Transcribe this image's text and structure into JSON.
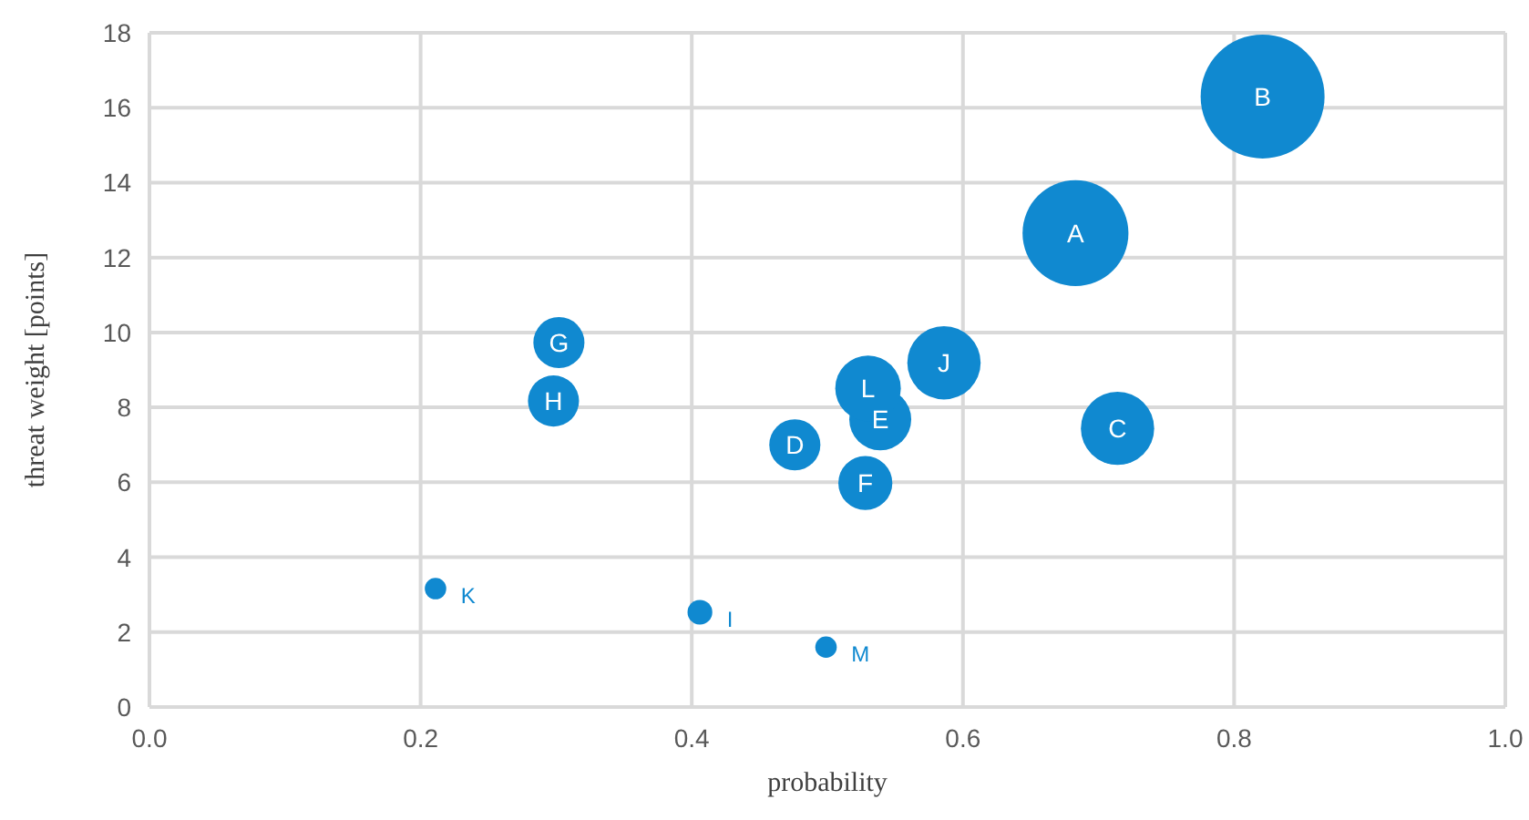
{
  "chart_data": {
    "type": "bubble",
    "xlabel": "probability",
    "ylabel": "threat weight [points]",
    "x": [
      0.683,
      0.821,
      0.714,
      0.476,
      0.539,
      0.528,
      0.302,
      0.298,
      0.406,
      0.586,
      0.211,
      0.53,
      0.499
    ],
    "values": [
      12.65,
      16.3,
      7.44,
      7.0,
      7.68,
      5.98,
      9.73,
      8.17,
      2.53,
      9.19,
      3.16,
      8.51,
      1.6
    ],
    "sizes": [
      0.73,
      1,
      0.35,
      0.17,
      0.25,
      0.19,
      0.17,
      0.17,
      0.04,
      0.35,
      0.03,
      0.28,
      0.03
    ],
    "color": "#1089d0",
    "annotations": [
      {
        "text": "A",
        "x": 0.683,
        "y": 12.65
      },
      {
        "text": "B",
        "x": 0.821,
        "y": 16.3
      },
      {
        "text": "C",
        "x": 0.714,
        "y": 7.44
      },
      {
        "text": "D",
        "x": 0.476,
        "y": 7.0
      },
      {
        "text": "E",
        "x": 0.539,
        "y": 7.68
      },
      {
        "text": "F",
        "x": 0.528,
        "y": 5.98
      },
      {
        "text": "G",
        "x": 0.302,
        "y": 9.73
      },
      {
        "text": "H",
        "x": 0.298,
        "y": 8.17
      },
      {
        "text": "I",
        "x": 0.406,
        "y": 2.53
      },
      {
        "text": "J",
        "x": 0.586,
        "y": 9.19
      },
      {
        "text": "K",
        "x": 0.211,
        "y": 3.16
      },
      {
        "text": "L",
        "x": 0.53,
        "y": 8.51
      },
      {
        "text": "M",
        "x": 0.499,
        "y": 1.6
      }
    ],
    "xlim": [
      0,
      1
    ],
    "xticks": [
      {
        "value": 0,
        "label": "0.0"
      },
      {
        "value": 0.2,
        "label": "0.2"
      },
      {
        "value": 0.4,
        "label": "0.4"
      },
      {
        "value": 0.6,
        "label": "0.6"
      },
      {
        "value": 0.8,
        "label": "0.8"
      },
      {
        "value": 1,
        "label": "1.0"
      }
    ],
    "ylim": [
      0,
      18
    ],
    "yticks": [
      0,
      2,
      4,
      6,
      8,
      10,
      12,
      14,
      16,
      18
    ],
    "grid": true
  }
}
